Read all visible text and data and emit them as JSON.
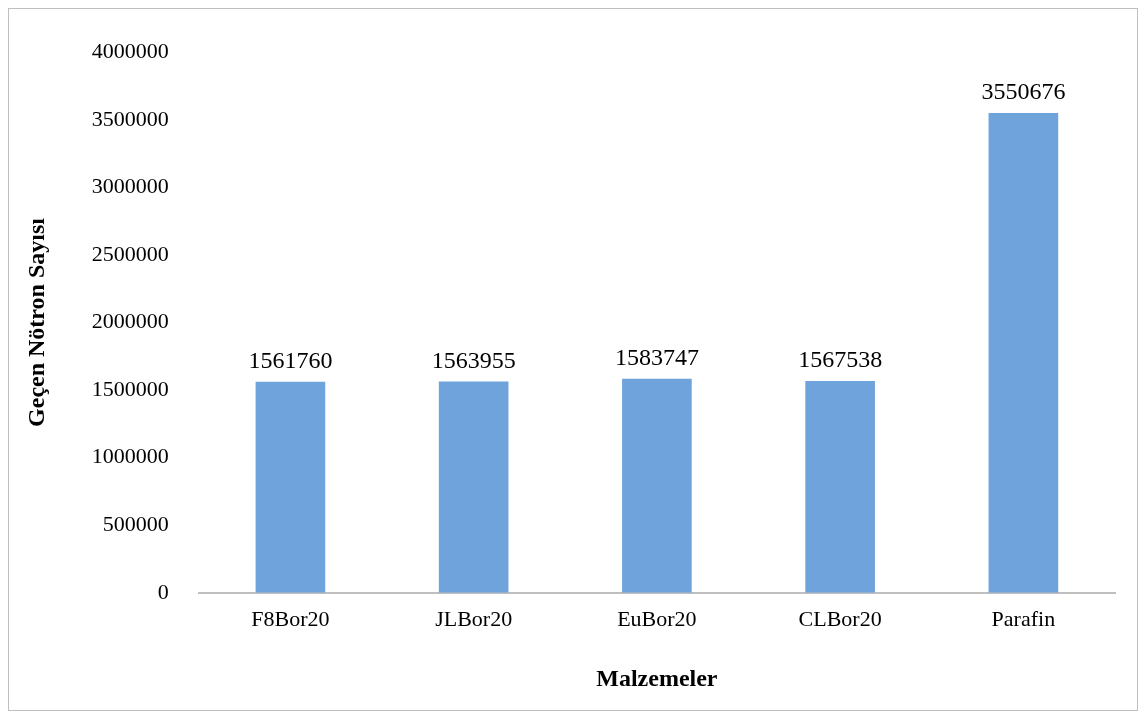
{
  "chart_data": {
    "type": "bar",
    "xlabel": "Malzemeler",
    "ylabel": "Geçen Nötron Sayısı",
    "categories": [
      "F8Bor20",
      "JLBor20",
      "EuBor20",
      "CLBor20",
      "Parafin"
    ],
    "values": [
      1561760,
      1563955,
      1583747,
      1567538,
      3550676
    ],
    "color": "#6fa3dc",
    "ylim": [
      0,
      4000000
    ],
    "yticks": [
      0,
      500000,
      1000000,
      1500000,
      2000000,
      2500000,
      3000000,
      3500000,
      4000000
    ],
    "grid": false,
    "legend": false,
    "data_labels": true
  }
}
